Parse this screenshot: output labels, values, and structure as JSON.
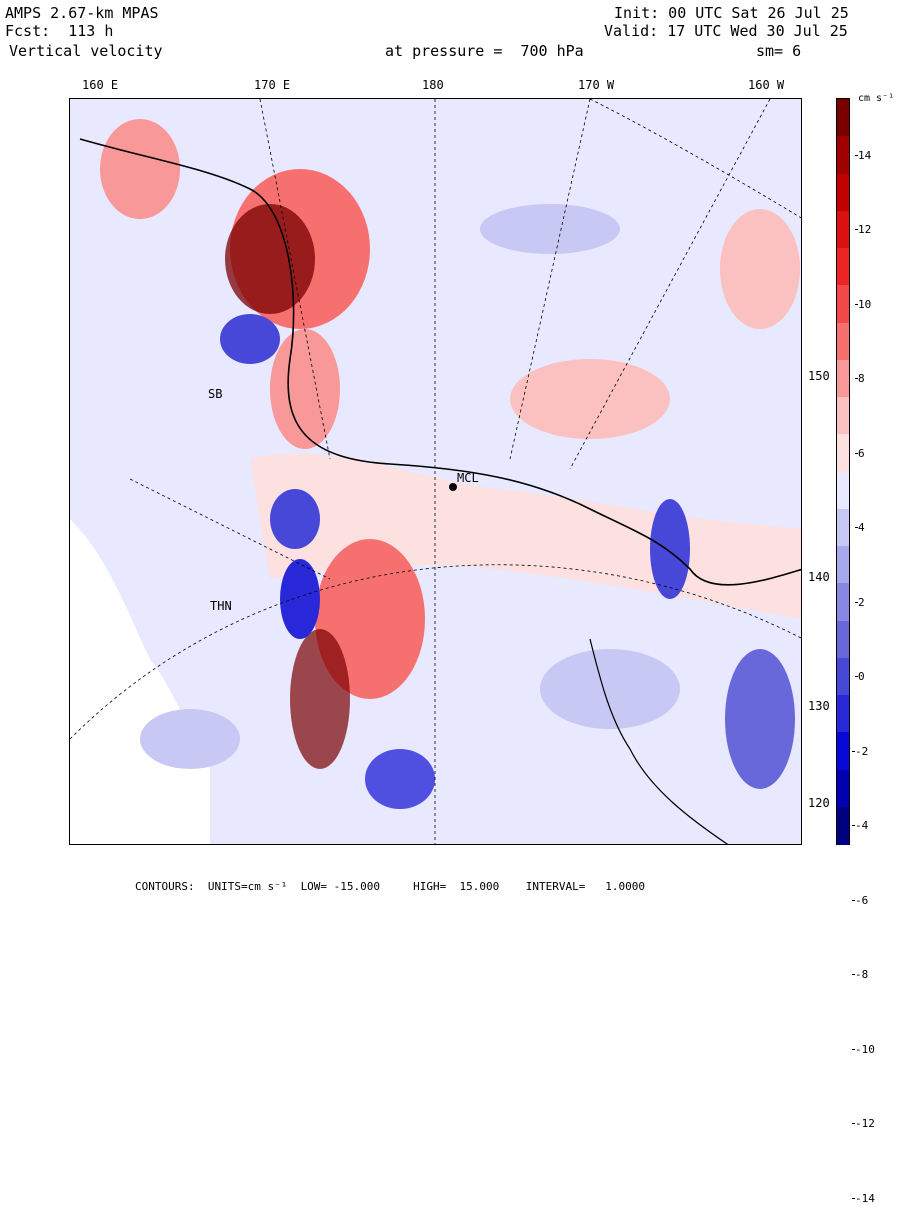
{
  "header": {
    "model": "AMPS 2.67-km MPAS",
    "forecast": "Fcst:  113 h",
    "field": "Vertical velocity",
    "init": "Init: 00 UTC Sat 26 Jul 25",
    "valid": "Valid: 17 UTC Wed 30 Jul 25",
    "level": "at pressure =  700 hPa",
    "smoothing": "sm= 6"
  },
  "top_axis": [
    "160 E",
    "170 E",
    "180",
    "170 W",
    "160 W"
  ],
  "right_axis": [
    "150 W",
    "140 W",
    "130 W",
    "120 W"
  ],
  "colorbar": {
    "units": "cm s⁻¹",
    "ticks": [
      "14",
      "12",
      "10",
      "8",
      "6",
      "4",
      "2",
      "0",
      "-2",
      "-4",
      "-6",
      "-8",
      "-10",
      "-12",
      "-14"
    ],
    "colors": [
      "#7a0000",
      "#a00000",
      "#c20000",
      "#dc1010",
      "#ee2424",
      "#f44848",
      "#f67070",
      "#f89898",
      "#fbc0c0",
      "#fde0e0",
      "#e8e8ff",
      "#c8c8f4",
      "#a8a8ec",
      "#8888e2",
      "#6868da",
      "#4848d8",
      "#2828d8",
      "#0808d8",
      "#0000b0",
      "#000080"
    ]
  },
  "map_labels": {
    "station": "MCL",
    "site2": "SB",
    "site3": "THN"
  },
  "footer": {
    "contours": "CONTOURS:  UNITS=cm s⁻¹  LOW= -15.000     HIGH=  15.000    INTERVAL=   1.0000"
  }
}
